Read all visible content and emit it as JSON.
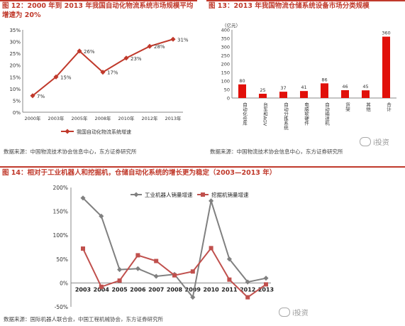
{
  "fig12": {
    "title_line1": "图 12：2000 年到 2013 年我国自动化物流系统市场规模平均",
    "title_line2": "增速为 20%",
    "source": "数据来源：中国物流技术协会信息中心，东方证券研究所"
  },
  "fig13": {
    "title": "图 13：2013 年我国物流仓储系统设备市场分类规模",
    "source": "数据来源：中国物流技术协会信息中心，东方证券研究所",
    "unit": "（亿元）",
    "watermark": "i投资"
  },
  "fig14": {
    "title": "图 14：相对于工业机器人和挖掘机，仓储自动化系统的增长更为稳定（2003—2013 年）",
    "source": "数据来源：国际机器人联合会，中国工程机械协会，东方证券研究所",
    "watermark": "i投资"
  },
  "colors": {
    "red": "#c0392b",
    "gray": "#808080",
    "darkred": "#c0504d"
  },
  "chart_data": [
    {
      "type": "line",
      "x": [
        "2000年",
        "2003年",
        "2005年",
        "2008年",
        "2010年",
        "2012年",
        "2013年"
      ],
      "series": [
        {
          "name": "我国自动化物流系统增速",
          "values": [
            7,
            15,
            26,
            17,
            23,
            28,
            31
          ],
          "labels": [
            "7%",
            "15%",
            "26%",
            "17%",
            "23%",
            "28%",
            "31%"
          ]
        }
      ],
      "ylim": [
        0,
        35
      ],
      "yticks": [
        "0%",
        "5%",
        "10%",
        "15%",
        "20%",
        "25%",
        "30%",
        "35%"
      ],
      "legend": "bottom",
      "grid": false
    },
    {
      "type": "bar",
      "categories": [
        "自动化仓库",
        "台车和AGV",
        "自动分拣系统",
        "电脑软硬件",
        "自动输送机",
        "货架",
        "其他",
        "合计"
      ],
      "values": [
        80,
        25,
        37,
        41,
        86,
        46,
        45,
        360
      ],
      "ylim": [
        0,
        400
      ],
      "yticks": [
        "0",
        "50",
        "100",
        "150",
        "200",
        "250",
        "300",
        "350",
        "400"
      ],
      "grid": false
    },
    {
      "type": "line",
      "x": [
        "2003",
        "2004",
        "2005",
        "2006",
        "2007",
        "2008",
        "2009",
        "2010",
        "2011",
        "2012",
        "2013"
      ],
      "series": [
        {
          "name": "工业机器人销量增速",
          "values": [
            178,
            140,
            28,
            30,
            14,
            18,
            -30,
            172,
            50,
            2,
            10
          ]
        },
        {
          "name": "挖掘机销量增速",
          "values": [
            72,
            -8,
            5,
            58,
            46,
            16,
            24,
            73,
            7,
            -30,
            -3
          ]
        }
      ],
      "ylim": [
        -50,
        200
      ],
      "yticks": [
        "-50%",
        "0%",
        "50%",
        "100%",
        "150%",
        "200%"
      ],
      "legend": "top",
      "grid": false
    }
  ]
}
